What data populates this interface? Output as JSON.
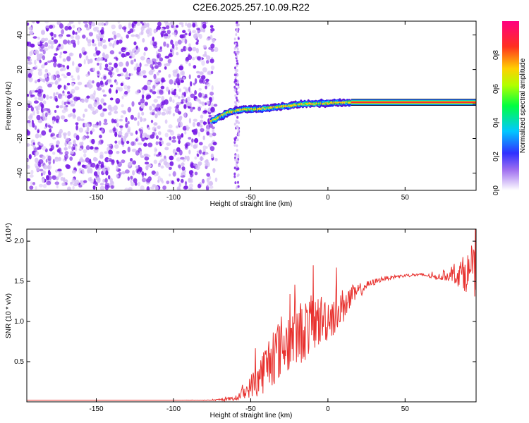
{
  "title": "C2E6.2025.257.10.09.R22",
  "colors": {
    "frame": "#000000",
    "snr_line": "#e8322f",
    "spec_purple": "#7a1ee6",
    "spec_lavender": "#d7c1f5",
    "spec_band": "#ff2a2a"
  },
  "colorbar": {
    "label": "Normalized spectral amplitude",
    "ticks": [
      {
        "v": 0.0,
        "label": "0.0"
      },
      {
        "v": 0.2,
        "label": "0.2"
      },
      {
        "v": 0.4,
        "label": "0.4"
      },
      {
        "v": 0.6,
        "label": "0.6"
      },
      {
        "v": 0.8,
        "label": "0.8"
      }
    ],
    "range": [
      0,
      1
    ]
  },
  "chart_data": [
    {
      "type": "heatmap",
      "name": "spectrogram",
      "title": "C2E6.2025.257.10.09.R22",
      "xlabel": "Height of straight line (km)",
      "ylabel": "Frequency (Hz)",
      "xlim": [
        -195,
        96
      ],
      "ylim": [
        -50,
        48
      ],
      "xticks": [
        {
          "v": -150,
          "label": "-150"
        },
        {
          "v": -100,
          "label": "-100"
        },
        {
          "v": -50,
          "label": "-50"
        },
        {
          "v": 0,
          "label": "0"
        },
        {
          "v": 50,
          "label": "50"
        }
      ],
      "yticks": [
        {
          "v": -40,
          "label": "-40"
        },
        {
          "v": -20,
          "label": "-20"
        },
        {
          "v": 0,
          "label": "0"
        },
        {
          "v": 20,
          "label": "20"
        },
        {
          "v": 40,
          "label": "40"
        }
      ],
      "noise_region_km": [
        -195,
        -75
      ],
      "noise_spike_km": -59,
      "band_points": [
        {
          "x": -75,
          "y": -10
        },
        {
          "x": -65,
          "y": -5
        },
        {
          "x": -55,
          "y": -3
        },
        {
          "x": -45,
          "y": -3
        },
        {
          "x": -35,
          "y": -2
        },
        {
          "x": -25,
          "y": -1
        },
        {
          "x": -15,
          "y": 0
        },
        {
          "x": 0,
          "y": 0.5
        },
        {
          "x": 15,
          "y": 1
        },
        {
          "x": 96,
          "y": 1
        }
      ]
    },
    {
      "type": "line",
      "name": "snr",
      "xlabel": "Height of straight line (km)",
      "ylabel": "SNR (10 * v/v)",
      "y_multiplier": "(x10⁴)",
      "xlim": [
        -195,
        96
      ],
      "ylim": [
        0,
        2.15
      ],
      "xticks": [
        {
          "v": -150,
          "label": "-150"
        },
        {
          "v": -100,
          "label": "-100"
        },
        {
          "v": -50,
          "label": "-50"
        },
        {
          "v": 0,
          "label": "0"
        },
        {
          "v": 50,
          "label": "50"
        }
      ],
      "yticks": [
        {
          "v": 0.5,
          "label": "0.5"
        },
        {
          "v": 1.0,
          "label": "1.0"
        },
        {
          "v": 1.5,
          "label": "1.5"
        },
        {
          "v": 2.0,
          "label": "2.0"
        }
      ],
      "series": [
        {
          "name": "SNR",
          "x": [
            -195,
            -150,
            -100,
            -75,
            -60,
            -52,
            -45,
            -38,
            -30,
            -22,
            -15,
            -8,
            0,
            8,
            15,
            25,
            35,
            45,
            55,
            62,
            70,
            80,
            88,
            93,
            96
          ],
          "values": [
            0.02,
            0.02,
            0.02,
            0.02,
            0.04,
            0.15,
            0.3,
            0.5,
            0.7,
            0.8,
            0.9,
            1.0,
            1.05,
            1.15,
            1.3,
            1.45,
            1.53,
            1.56,
            1.58,
            1.58,
            1.55,
            1.58,
            1.6,
            1.62,
            1.6
          ],
          "noise_amp": [
            0,
            0,
            0,
            0.005,
            0.03,
            0.1,
            0.25,
            0.35,
            0.4,
            0.4,
            0.4,
            0.35,
            0.3,
            0.25,
            0.15,
            0.05,
            0.03,
            0.02,
            0.02,
            0.02,
            0.03,
            0.08,
            0.22,
            0.28,
            0.3
          ]
        }
      ]
    }
  ]
}
